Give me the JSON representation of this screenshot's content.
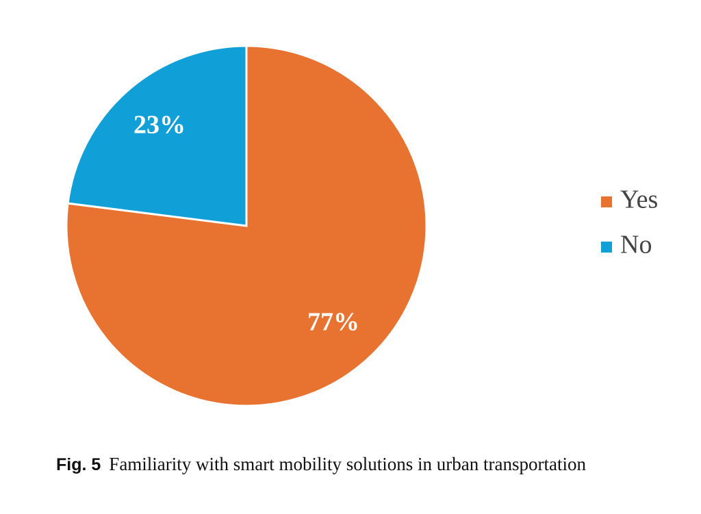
{
  "chart_data": {
    "type": "pie",
    "categories": [
      "Yes",
      "No"
    ],
    "values": [
      77,
      23
    ],
    "value_labels": [
      "77%",
      "23%"
    ],
    "colors": [
      "#e8722f",
      "#109fd6"
    ],
    "legend": "right",
    "caption_label": "Fig. 5",
    "caption": "Familiarity with smart mobility solutions in urban transportation"
  }
}
